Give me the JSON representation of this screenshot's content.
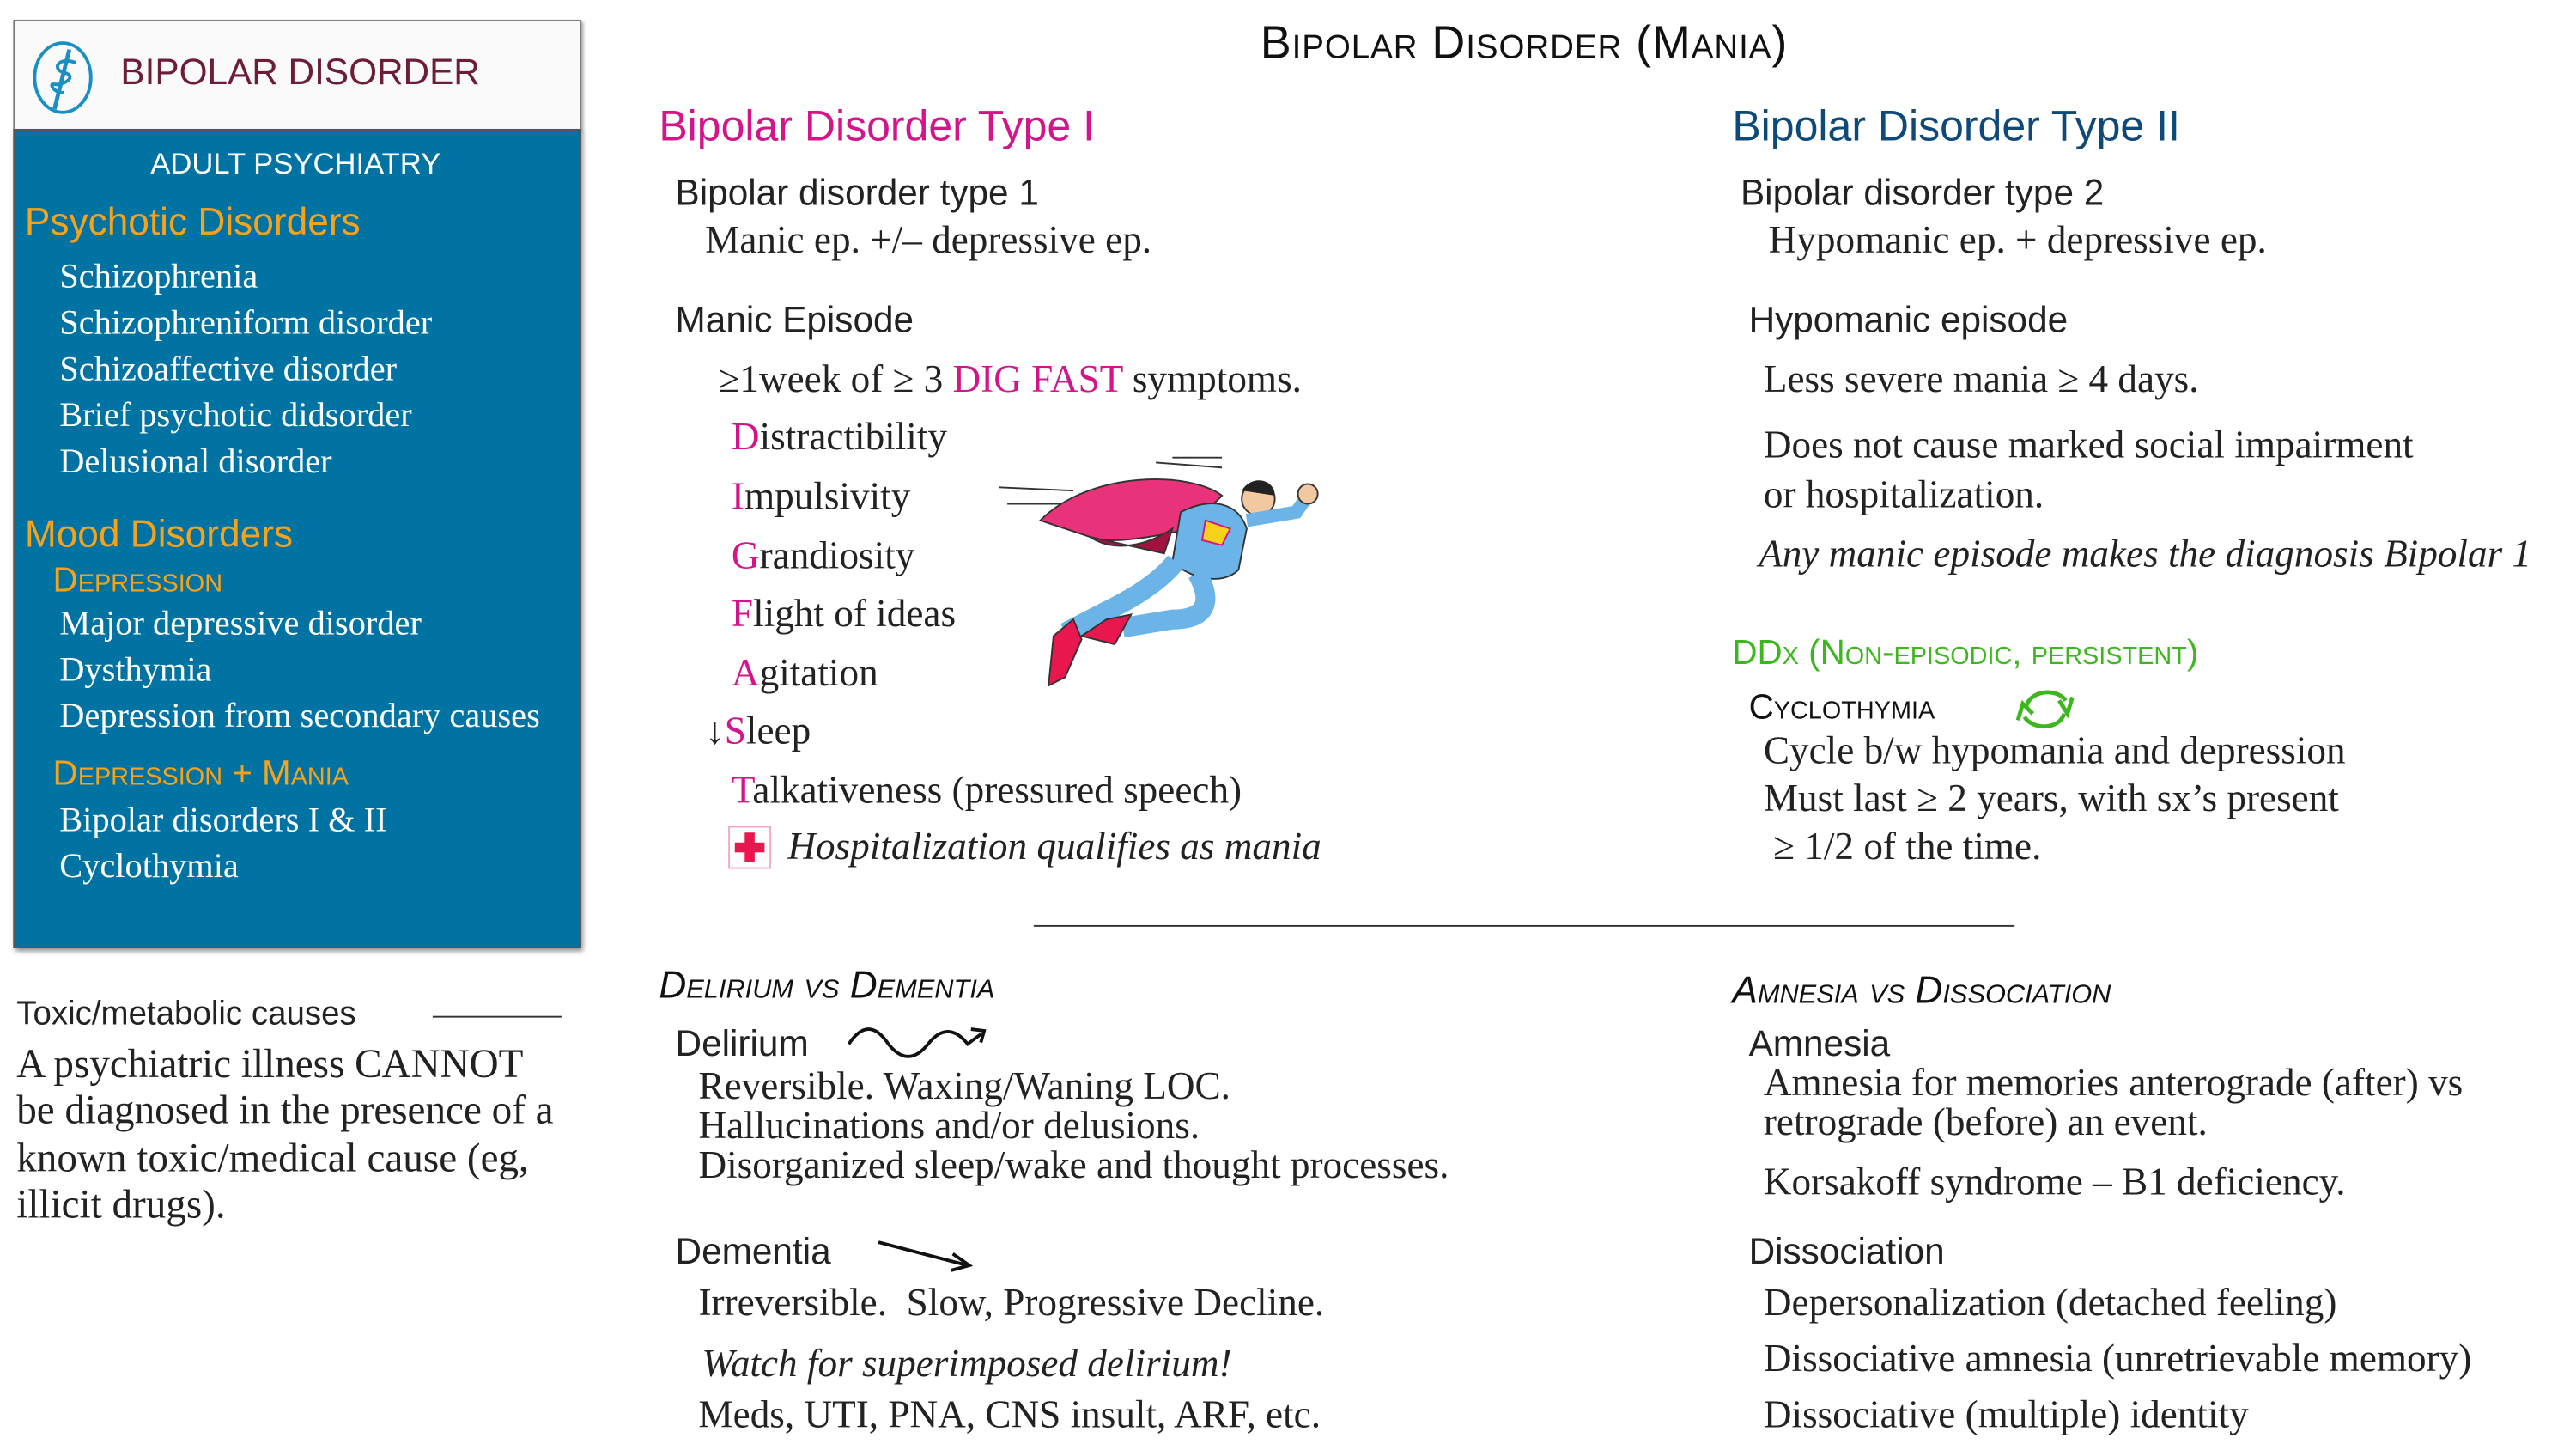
{
  "page_title": "Bipolar Disorder (Mania)",
  "sidebar": {
    "brand_title": "BIPOLAR DISORDER",
    "brand_icon": "rod-of-asclepius-icon",
    "section": "ADULT PSYCHIATRY",
    "groups": [
      {
        "heading": "Psychotic Disorders",
        "items": [
          "Schizophrenia",
          "Schizophreniform disorder",
          "Schizoaffective disorder",
          "Brief psychotic didsorder",
          "Delusional disorder"
        ]
      },
      {
        "heading": "Mood Disorders",
        "subgroups": [
          {
            "heading": "Depression",
            "items": [
              "Major depressive disorder",
              "Dysthymia",
              "Depression from secondary causes"
            ]
          },
          {
            "heading": "Depression + Mania",
            "items": [
              "Bipolar disorders I & II",
              "Cyclothymia"
            ]
          }
        ]
      }
    ]
  },
  "toxic_note": {
    "heading": "Toxic/metabolic causes",
    "lines": [
      "A psychiatric illness CANNOT",
      "be diagnosed in the presence of a",
      "known toxic/medical cause (eg,",
      "illicit drugs)."
    ]
  },
  "type1": {
    "heading": "Bipolar Disorder Type I",
    "subheading": "Bipolar disorder type 1",
    "definition": "Manic ep. +/– depressive  ep.",
    "episode_heading": "Manic Episode",
    "criteria_pre": "≥1week of ≥ 3 ",
    "criteria_mnemonic": "DIG FAST",
    "criteria_post": " symptoms.",
    "dig_fast": [
      {
        "prefix": "",
        "letter": "D",
        "rest": "istractibility"
      },
      {
        "prefix": "",
        "letter": "I",
        "rest": "mpulsivity"
      },
      {
        "prefix": "",
        "letter": "G",
        "rest": "randiosity"
      },
      {
        "prefix": "",
        "letter": "F",
        "rest": "light of ideas"
      },
      {
        "prefix": "",
        "letter": "A",
        "rest": "gitation"
      },
      {
        "prefix": "↓",
        "letter": "S",
        "rest": "leep"
      },
      {
        "prefix": "",
        "letter": "T",
        "rest": "alkativeness (pressured speech)"
      }
    ],
    "hospital_icon": "red-cross-icon",
    "hospital_note": "Hospitalization qualifies as mania",
    "illustration": "superhero-flying"
  },
  "type2": {
    "heading": "Bipolar Disorder Type II",
    "subheading": "Bipolar disorder type 2",
    "definition": "Hypomanic ep. + depressive ep.",
    "episode_heading": "Hypomanic episode",
    "lines": [
      "Less severe mania ≥ 4 days.",
      "Does not cause marked social impairment",
      "or hospitalization."
    ],
    "note": "Any manic episode makes the diagnosis Bipolar 1",
    "ddx_heading": "DDx (Non-episodic, persistent)",
    "cyclothymia_heading": "Cyclothymia",
    "cycle_icon": "cycle-arrows-icon",
    "cyclothymia_lines": [
      "Cycle b/w hypomania and depression",
      "Must last ≥ 2 years, with sx’s present",
      " ≥ 1/2 of the time."
    ]
  },
  "delirium_dementia": {
    "heading": "Delirium vs Dementia",
    "delirium_heading": "Delirium",
    "delirium_icon": "wavy-arrow-icon",
    "delirium_lines": [
      "Reversible. Waxing/Waning LOC.",
      "Hallucinations and/or delusions.",
      "Disorganized sleep/wake and thought processes."
    ],
    "dementia_heading": "Dementia",
    "dementia_icon": "declining-arrow-icon",
    "dementia_line": "Irreversible.  Slow, Progressive Decline.",
    "dementia_warning": "Watch for superimposed delirium!",
    "dementia_causes": "Meds, UTI, PNA, CNS insult, ARF, etc."
  },
  "amnesia_dissociation": {
    "heading": "Amnesia vs Dissociation",
    "amnesia_heading": "Amnesia",
    "amnesia_lines": [
      "Amnesia for memories anterograde (after) vs",
      "retrograde (before) an event.",
      "Korsakoff syndrome – B1 deficiency."
    ],
    "dissociation_heading": "Dissociation",
    "dissociation_lines": [
      "Depersonalization (detached feeling)",
      "Dissociative amnesia (unretrievable memory)",
      "Dissociative (multiple) identity"
    ]
  },
  "colors": {
    "sidebar_blue": "#0073a3",
    "brand_maroon": "#6b1e35",
    "orange": "#f7a21b",
    "type1_magenta": "#d4148a",
    "type2_navy": "#0d4a7a",
    "ddx_green": "#3cb81e"
  }
}
